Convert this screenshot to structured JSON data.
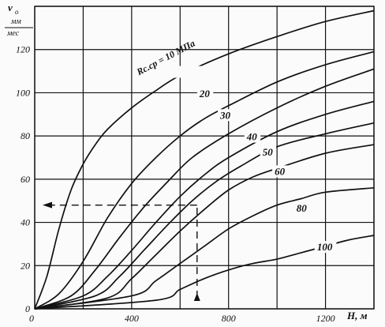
{
  "chart_data": {
    "type": "line",
    "title": "",
    "ylabel_top": "v",
    "ylabel_sub": "о",
    "ylabel_unit_num": "мм",
    "ylabel_unit_den": "мес",
    "xlabel": "H, м",
    "xlim": [
      0,
      1400
    ],
    "ylim": [
      0,
      140
    ],
    "x_tick_labels": [
      "0",
      "400",
      "800",
      "1200"
    ],
    "x_tick_values": [
      0,
      400,
      800,
      1200
    ],
    "y_tick_labels": [
      "0",
      "20",
      "40",
      "60",
      "80",
      "100",
      "120"
    ],
    "y_tick_values": [
      0,
      20,
      40,
      60,
      80,
      100,
      120
    ],
    "grid": true,
    "series": [
      {
        "name": "Rс.ср = 10 МПа",
        "label_x": 430,
        "label_y": 108,
        "x": [
          0,
          50,
          100,
          150,
          200,
          250,
          300,
          400,
          500,
          600,
          800,
          1000,
          1200,
          1400
        ],
        "y": [
          0,
          15,
          37,
          55,
          67,
          76,
          83,
          93,
          101,
          108,
          118,
          126,
          133,
          138
        ]
      },
      {
        "name": "20",
        "label_x": 680,
        "label_y": 98,
        "x": [
          0,
          100,
          200,
          300,
          400,
          500,
          600,
          700,
          800,
          1000,
          1200,
          1400
        ],
        "y": [
          0,
          7,
          22,
          42,
          58,
          70,
          80,
          88,
          94,
          105,
          113,
          119
        ]
      },
      {
        "name": "30",
        "label_x": 765,
        "label_y": 88,
        "x": [
          0,
          150,
          250,
          350,
          450,
          550,
          650,
          800,
          1000,
          1200,
          1400
        ],
        "y": [
          0,
          6,
          18,
          33,
          47,
          59,
          70,
          81,
          93,
          103,
          111
        ]
      },
      {
        "name": "40",
        "label_x": 875,
        "label_y": 78,
        "x": [
          0,
          200,
          300,
          400,
          500,
          600,
          700,
          800,
          1000,
          1200,
          1400
        ],
        "y": [
          0,
          6,
          15,
          27,
          40,
          52,
          62,
          70,
          82,
          90,
          96
        ]
      },
      {
        "name": "50",
        "label_x": 940,
        "label_y": 71,
        "x": [
          0,
          250,
          350,
          450,
          550,
          650,
          750,
          850,
          1000,
          1200,
          1400
        ],
        "y": [
          0,
          6,
          15,
          27,
          39,
          50,
          59,
          66,
          75,
          81,
          86
        ]
      },
      {
        "name": "60",
        "label_x": 990,
        "label_y": 62,
        "x": [
          0,
          300,
          400,
          500,
          600,
          700,
          800,
          900,
          1000,
          1200,
          1400
        ],
        "y": [
          0,
          5,
          14,
          25,
          36,
          46,
          55,
          61,
          65,
          72,
          76
        ]
      },
      {
        "name": "80",
        "label_x": 1080,
        "label_y": 45,
        "x": [
          0,
          400,
          500,
          600,
          700,
          800,
          900,
          1000,
          1100,
          1200,
          1400
        ],
        "y": [
          0,
          6,
          13,
          21,
          29,
          37,
          43,
          48,
          51,
          54,
          56
        ]
      },
      {
        "name": "100",
        "label_x": 1165,
        "label_y": 27,
        "x": [
          0,
          500,
          600,
          700,
          800,
          900,
          1000,
          1100,
          1200,
          1300,
          1400
        ],
        "y": [
          0,
          4,
          9,
          14,
          18,
          21,
          23,
          26,
          29,
          32,
          34
        ]
      }
    ],
    "guide_h": {
      "x": [
        670,
        0
      ],
      "y": [
        48,
        48
      ]
    },
    "guide_v": {
      "x": [
        670,
        670
      ],
      "y": [
        0,
        48
      ]
    }
  }
}
